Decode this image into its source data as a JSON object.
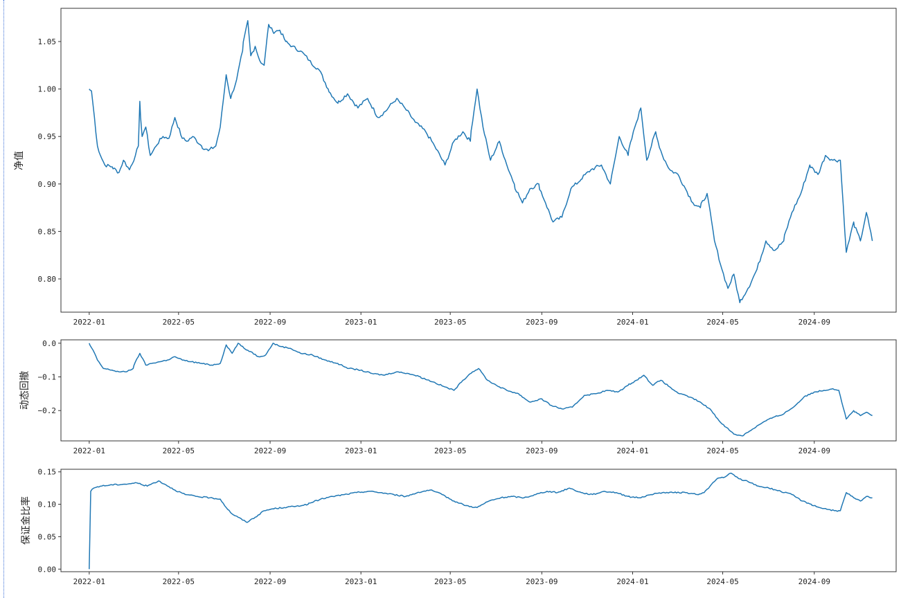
{
  "chart_data": [
    {
      "type": "line",
      "ylabel": "净值",
      "xlabel": "",
      "title": "",
      "ylim": [
        0.765,
        1.085
      ],
      "yticks": [
        0.8,
        0.85,
        0.9,
        0.95,
        1.0,
        1.05
      ],
      "ytick_labels": [
        "0.80",
        "0.85",
        "0.90",
        "0.95",
        "1.00",
        "1.05"
      ],
      "xticks": [
        "2022-01",
        "2022-05",
        "2022-09",
        "2023-01",
        "2023-05",
        "2023-09",
        "2024-01",
        "2024-05",
        "2024-09"
      ],
      "xlim": [
        "2021-11-24",
        "2024-12-20"
      ],
      "grid": false,
      "color": "#1f77b4",
      "series": [
        {
          "x": [
            "2022-01-01",
            "2022-01-04",
            "2022-01-08",
            "2022-01-12",
            "2022-01-16",
            "2022-01-22",
            "2022-02-01",
            "2022-02-10",
            "2022-02-16",
            "2022-02-24",
            "2022-03-04",
            "2022-03-08",
            "2022-03-10",
            "2022-03-13",
            "2022-03-18",
            "2022-03-24",
            "2022-04-01",
            "2022-04-10",
            "2022-04-18",
            "2022-04-26",
            "2022-05-06",
            "2022-05-12",
            "2022-05-20",
            "2022-06-01",
            "2022-06-10",
            "2022-06-20",
            "2022-06-26",
            "2022-07-04",
            "2022-07-10",
            "2022-07-18",
            "2022-07-26",
            "2022-08-02",
            "2022-08-06",
            "2022-08-12",
            "2022-08-18",
            "2022-08-24",
            "2022-08-30",
            "2022-09-05",
            "2022-09-14",
            "2022-09-22",
            "2022-10-01",
            "2022-10-12",
            "2022-10-24",
            "2022-11-06",
            "2022-11-18",
            "2022-12-01",
            "2022-12-14",
            "2022-12-28",
            "2023-01-10",
            "2023-01-24",
            "2023-02-05",
            "2023-02-18",
            "2023-03-01",
            "2023-03-15",
            "2023-03-29",
            "2023-04-10",
            "2023-04-24",
            "2023-05-06",
            "2023-05-18",
            "2023-05-28",
            "2023-06-06",
            "2023-06-14",
            "2023-06-24",
            "2023-07-06",
            "2023-07-16",
            "2023-07-26",
            "2023-08-06",
            "2023-08-16",
            "2023-08-28",
            "2023-09-06",
            "2023-09-16",
            "2023-09-28",
            "2023-10-10",
            "2023-10-24",
            "2023-11-06",
            "2023-11-20",
            "2023-12-02",
            "2023-12-14",
            "2023-12-26",
            "2024-01-04",
            "2024-01-12",
            "2024-01-20",
            "2024-02-01",
            "2024-02-10",
            "2024-02-20",
            "2024-03-02",
            "2024-03-12",
            "2024-03-22",
            "2024-04-01",
            "2024-04-10",
            "2024-04-20",
            "2024-04-30",
            "2024-05-08",
            "2024-05-16",
            "2024-05-24",
            "2024-06-04",
            "2024-06-16",
            "2024-06-28",
            "2024-07-10",
            "2024-07-22",
            "2024-08-02",
            "2024-08-14",
            "2024-08-26",
            "2024-09-06",
            "2024-09-16",
            "2024-09-26",
            "2024-10-06",
            "2024-10-14",
            "2024-10-24",
            "2024-11-02",
            "2024-11-10",
            "2024-11-18"
          ],
          "y": [
            1.0,
            0.998,
            0.97,
            0.94,
            0.93,
            0.92,
            0.918,
            0.912,
            0.925,
            0.915,
            0.93,
            0.94,
            0.987,
            0.95,
            0.96,
            0.93,
            0.94,
            0.95,
            0.948,
            0.97,
            0.948,
            0.945,
            0.95,
            0.94,
            0.935,
            0.94,
            0.96,
            1.015,
            0.99,
            1.01,
            1.04,
            1.072,
            1.035,
            1.045,
            1.03,
            1.025,
            1.068,
            1.06,
            1.062,
            1.05,
            1.045,
            1.04,
            1.03,
            1.02,
            1.0,
            0.985,
            0.995,
            0.98,
            0.99,
            0.97,
            0.978,
            0.99,
            0.98,
            0.965,
            0.955,
            0.94,
            0.92,
            0.945,
            0.955,
            0.945,
            1.0,
            0.96,
            0.925,
            0.945,
            0.92,
            0.9,
            0.88,
            0.895,
            0.9,
            0.88,
            0.86,
            0.865,
            0.895,
            0.905,
            0.915,
            0.92,
            0.9,
            0.95,
            0.93,
            0.96,
            0.98,
            0.925,
            0.955,
            0.93,
            0.915,
            0.91,
            0.895,
            0.88,
            0.875,
            0.89,
            0.84,
            0.81,
            0.79,
            0.805,
            0.775,
            0.79,
            0.81,
            0.84,
            0.83,
            0.84,
            0.87,
            0.89,
            0.92,
            0.91,
            0.93,
            0.925,
            0.925,
            0.828,
            0.86,
            0.84,
            0.87,
            0.84
          ]
        }
      ]
    },
    {
      "type": "line",
      "ylabel": "动态回撤",
      "xlabel": "",
      "title": "",
      "ylim": [
        -0.29,
        0.01
      ],
      "yticks": [
        -0.2,
        -0.1,
        0.0
      ],
      "ytick_labels": [
        "−0.2",
        "−0.1",
        "0.0"
      ],
      "xticks": [
        "2022-01",
        "2022-05",
        "2022-09",
        "2023-01",
        "2023-05",
        "2023-09",
        "2024-01",
        "2024-05",
        "2024-09"
      ],
      "xlim": [
        "2021-11-24",
        "2024-12-20"
      ],
      "grid": false,
      "color": "#1f77b4",
      "series": [
        {
          "x": [
            "2022-01-01",
            "2022-01-06",
            "2022-01-12",
            "2022-01-20",
            "2022-02-01",
            "2022-02-10",
            "2022-02-20",
            "2022-03-01",
            "2022-03-10",
            "2022-03-18",
            "2022-03-26",
            "2022-04-06",
            "2022-04-16",
            "2022-04-26",
            "2022-05-06",
            "2022-05-18",
            "2022-06-01",
            "2022-06-14",
            "2022-06-26",
            "2022-07-04",
            "2022-07-12",
            "2022-07-20",
            "2022-07-28",
            "2022-08-06",
            "2022-08-16",
            "2022-08-26",
            "2022-09-05",
            "2022-09-16",
            "2022-09-28",
            "2022-10-12",
            "2022-10-28",
            "2022-11-14",
            "2022-12-01",
            "2022-12-16",
            "2023-01-01",
            "2023-01-16",
            "2023-02-01",
            "2023-02-18",
            "2023-03-06",
            "2023-03-22",
            "2023-04-08",
            "2023-04-24",
            "2023-05-06",
            "2023-05-18",
            "2023-05-28",
            "2023-06-08",
            "2023-06-20",
            "2023-07-02",
            "2023-07-16",
            "2023-08-01",
            "2023-08-16",
            "2023-09-01",
            "2023-09-14",
            "2023-09-28",
            "2023-10-12",
            "2023-10-28",
            "2023-11-12",
            "2023-11-28",
            "2023-12-12",
            "2023-12-26",
            "2024-01-06",
            "2024-01-16",
            "2024-01-28",
            "2024-02-08",
            "2024-02-20",
            "2024-03-04",
            "2024-03-18",
            "2024-04-01",
            "2024-04-14",
            "2024-04-26",
            "2024-05-06",
            "2024-05-16",
            "2024-05-28",
            "2024-06-10",
            "2024-06-24",
            "2024-07-08",
            "2024-07-22",
            "2024-08-04",
            "2024-08-18",
            "2024-09-01",
            "2024-09-14",
            "2024-09-26",
            "2024-10-04",
            "2024-10-14",
            "2024-10-24",
            "2024-11-02",
            "2024-11-10",
            "2024-11-18"
          ],
          "y": [
            0.0,
            -0.02,
            -0.05,
            -0.075,
            -0.08,
            -0.085,
            -0.085,
            -0.075,
            -0.03,
            -0.065,
            -0.06,
            -0.055,
            -0.05,
            -0.04,
            -0.05,
            -0.055,
            -0.06,
            -0.065,
            -0.06,
            -0.005,
            -0.03,
            0.0,
            -0.015,
            -0.025,
            -0.04,
            -0.035,
            0.0,
            -0.01,
            -0.015,
            -0.03,
            -0.035,
            -0.05,
            -0.06,
            -0.075,
            -0.08,
            -0.09,
            -0.095,
            -0.085,
            -0.09,
            -0.1,
            -0.115,
            -0.13,
            -0.14,
            -0.11,
            -0.09,
            -0.075,
            -0.11,
            -0.125,
            -0.14,
            -0.15,
            -0.175,
            -0.165,
            -0.185,
            -0.195,
            -0.19,
            -0.155,
            -0.15,
            -0.14,
            -0.145,
            -0.125,
            -0.11,
            -0.095,
            -0.125,
            -0.11,
            -0.13,
            -0.15,
            -0.16,
            -0.175,
            -0.195,
            -0.23,
            -0.25,
            -0.27,
            -0.275,
            -0.255,
            -0.235,
            -0.22,
            -0.21,
            -0.19,
            -0.16,
            -0.145,
            -0.14,
            -0.135,
            -0.14,
            -0.225,
            -0.2,
            -0.215,
            -0.205,
            -0.215
          ]
        }
      ]
    },
    {
      "type": "line",
      "ylabel": "保证金比率",
      "xlabel": "",
      "title": "",
      "ylim": [
        -0.004,
        0.154
      ],
      "yticks": [
        0.0,
        0.05,
        0.1,
        0.15
      ],
      "ytick_labels": [
        "0.00",
        "0.05",
        "0.10",
        "0.15"
      ],
      "xticks": [
        "2022-01",
        "2022-05",
        "2022-09",
        "2023-01",
        "2023-05",
        "2023-09",
        "2024-01",
        "2024-05",
        "2024-09"
      ],
      "xlim": [
        "2021-11-24",
        "2024-12-20"
      ],
      "grid": false,
      "color": "#1f77b4",
      "series": [
        {
          "x": [
            "2022-01-01",
            "2022-01-03",
            "2022-01-07",
            "2022-01-16",
            "2022-02-01",
            "2022-02-18",
            "2022-03-06",
            "2022-03-20",
            "2022-04-04",
            "2022-04-14",
            "2022-04-26",
            "2022-05-10",
            "2022-05-26",
            "2022-06-12",
            "2022-06-26",
            "2022-07-04",
            "2022-07-12",
            "2022-07-20",
            "2022-08-01",
            "2022-08-12",
            "2022-08-24",
            "2022-09-05",
            "2022-09-20",
            "2022-10-06",
            "2022-10-22",
            "2022-11-08",
            "2022-11-24",
            "2022-12-10",
            "2022-12-26",
            "2023-01-12",
            "2023-01-28",
            "2023-02-14",
            "2023-03-02",
            "2023-03-18",
            "2023-04-04",
            "2023-04-20",
            "2023-05-06",
            "2023-05-22",
            "2023-06-06",
            "2023-06-22",
            "2023-07-08",
            "2023-07-24",
            "2023-08-08",
            "2023-08-24",
            "2023-09-08",
            "2023-09-22",
            "2023-10-08",
            "2023-10-24",
            "2023-11-08",
            "2023-11-24",
            "2023-12-10",
            "2023-12-26",
            "2024-01-10",
            "2024-01-26",
            "2024-02-10",
            "2024-02-26",
            "2024-03-12",
            "2024-03-28",
            "2024-04-06",
            "2024-04-14",
            "2024-04-24",
            "2024-05-04",
            "2024-05-12",
            "2024-05-22",
            "2024-06-04",
            "2024-06-18",
            "2024-07-02",
            "2024-07-18",
            "2024-08-02",
            "2024-08-16",
            "2024-08-28",
            "2024-09-08",
            "2024-09-20",
            "2024-09-28",
            "2024-10-06",
            "2024-10-14",
            "2024-10-24",
            "2024-11-02",
            "2024-11-10",
            "2024-11-18"
          ],
          "y": [
            0.0,
            0.12,
            0.125,
            0.128,
            0.13,
            0.131,
            0.133,
            0.128,
            0.136,
            0.13,
            0.122,
            0.115,
            0.112,
            0.11,
            0.108,
            0.095,
            0.085,
            0.08,
            0.072,
            0.08,
            0.09,
            0.093,
            0.095,
            0.097,
            0.1,
            0.108,
            0.112,
            0.115,
            0.118,
            0.12,
            0.118,
            0.115,
            0.112,
            0.118,
            0.122,
            0.115,
            0.105,
            0.098,
            0.095,
            0.105,
            0.11,
            0.112,
            0.11,
            0.115,
            0.12,
            0.118,
            0.125,
            0.118,
            0.115,
            0.12,
            0.118,
            0.112,
            0.11,
            0.115,
            0.118,
            0.118,
            0.118,
            0.115,
            0.118,
            0.128,
            0.14,
            0.142,
            0.148,
            0.14,
            0.135,
            0.128,
            0.125,
            0.12,
            0.115,
            0.105,
            0.1,
            0.095,
            0.092,
            0.09,
            0.09,
            0.118,
            0.11,
            0.105,
            0.112,
            0.11
          ]
        }
      ]
    }
  ]
}
